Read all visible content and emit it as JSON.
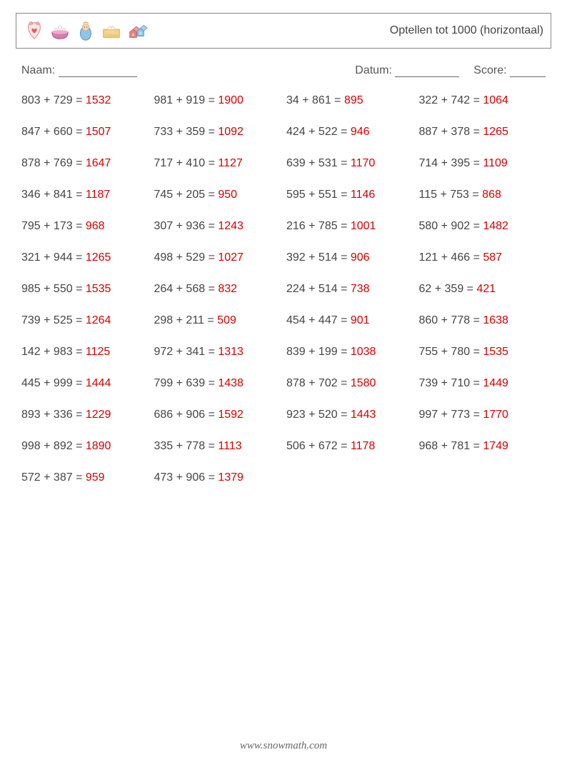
{
  "title": "Optellen tot 1000 (horizontaal)",
  "meta": {
    "name_label": "Naam:",
    "date_label": "Datum:",
    "score_label": "Score:"
  },
  "footer": "www.snowmath.com",
  "answer_color": "#d40000",
  "text_color": "#444444",
  "problems": [
    {
      "a": 803,
      "b": 729,
      "r": 1532
    },
    {
      "a": 981,
      "b": 919,
      "r": 1900
    },
    {
      "a": 34,
      "b": 861,
      "r": 895
    },
    {
      "a": 322,
      "b": 742,
      "r": 1064
    },
    {
      "a": 847,
      "b": 660,
      "r": 1507
    },
    {
      "a": 733,
      "b": 359,
      "r": 1092
    },
    {
      "a": 424,
      "b": 522,
      "r": 946
    },
    {
      "a": 887,
      "b": 378,
      "r": 1265
    },
    {
      "a": 878,
      "b": 769,
      "r": 1647
    },
    {
      "a": 717,
      "b": 410,
      "r": 1127
    },
    {
      "a": 639,
      "b": 531,
      "r": 1170
    },
    {
      "a": 714,
      "b": 395,
      "r": 1109
    },
    {
      "a": 346,
      "b": 841,
      "r": 1187
    },
    {
      "a": 745,
      "b": 205,
      "r": 950
    },
    {
      "a": 595,
      "b": 551,
      "r": 1146
    },
    {
      "a": 115,
      "b": 753,
      "r": 868
    },
    {
      "a": 795,
      "b": 173,
      "r": 968
    },
    {
      "a": 307,
      "b": 936,
      "r": 1243
    },
    {
      "a": 216,
      "b": 785,
      "r": 1001
    },
    {
      "a": 580,
      "b": 902,
      "r": 1482
    },
    {
      "a": 321,
      "b": 944,
      "r": 1265
    },
    {
      "a": 498,
      "b": 529,
      "r": 1027
    },
    {
      "a": 392,
      "b": 514,
      "r": 906
    },
    {
      "a": 121,
      "b": 466,
      "r": 587
    },
    {
      "a": 985,
      "b": 550,
      "r": 1535
    },
    {
      "a": 264,
      "b": 568,
      "r": 832
    },
    {
      "a": 224,
      "b": 514,
      "r": 738
    },
    {
      "a": 62,
      "b": 359,
      "r": 421
    },
    {
      "a": 739,
      "b": 525,
      "r": 1264
    },
    {
      "a": 298,
      "b": 211,
      "r": 509
    },
    {
      "a": 454,
      "b": 447,
      "r": 901
    },
    {
      "a": 860,
      "b": 778,
      "r": 1638
    },
    {
      "a": 142,
      "b": 983,
      "r": 1125
    },
    {
      "a": 972,
      "b": 341,
      "r": 1313
    },
    {
      "a": 839,
      "b": 199,
      "r": 1038
    },
    {
      "a": 755,
      "b": 780,
      "r": 1535
    },
    {
      "a": 445,
      "b": 999,
      "r": 1444
    },
    {
      "a": 799,
      "b": 639,
      "r": 1438
    },
    {
      "a": 878,
      "b": 702,
      "r": 1580
    },
    {
      "a": 739,
      "b": 710,
      "r": 1449
    },
    {
      "a": 893,
      "b": 336,
      "r": 1229
    },
    {
      "a": 686,
      "b": 906,
      "r": 1592
    },
    {
      "a": 923,
      "b": 520,
      "r": 1443
    },
    {
      "a": 997,
      "b": 773,
      "r": 1770
    },
    {
      "a": 998,
      "b": 892,
      "r": 1890
    },
    {
      "a": 335,
      "b": 778,
      "r": 1113
    },
    {
      "a": 506,
      "b": 672,
      "r": 1178
    },
    {
      "a": 968,
      "b": 781,
      "r": 1749
    },
    {
      "a": 572,
      "b": 387,
      "r": 959
    },
    {
      "a": 473,
      "b": 906,
      "r": 1379
    }
  ]
}
